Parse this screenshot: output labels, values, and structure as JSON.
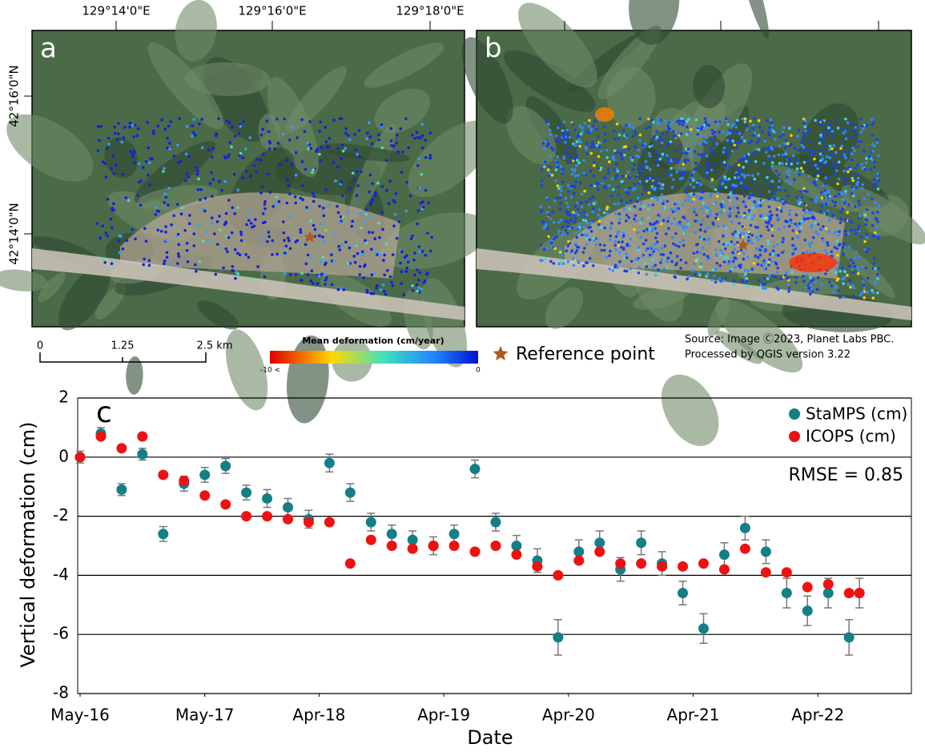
{
  "maps": {
    "panels": [
      {
        "label": "a"
      },
      {
        "label": "b"
      }
    ],
    "lon_labels": [
      "129°14'0\"E",
      "129°16'0\"E",
      "129°18'0\"E"
    ],
    "lat_labels": [
      "42°16'0\"N",
      "42°14'0\"N"
    ],
    "scale_bar": {
      "labels": [
        "0",
        "1.25",
        "2.5  km"
      ]
    },
    "colorbar": {
      "title": "Mean deformation (cm/year)",
      "min_label": "-10 <",
      "max_label": "0"
    },
    "reference": "Reference point",
    "source": [
      "Source: Image Ⓒ2023, Planet Labs PBC.",
      "Processed by QGIS version 3.22"
    ]
  },
  "chart_data": {
    "type": "scatter",
    "panel_label": "c",
    "xlabel": "Date",
    "ylabel": "Vertical deformation (cm)",
    "annotation": "RMSE = 0.85",
    "x": [
      "2016-05",
      "2016-07",
      "2016-09",
      "2016-11",
      "2017-01",
      "2017-03",
      "2017-05",
      "2017-07",
      "2017-09",
      "2017-11",
      "2018-01",
      "2018-03",
      "2018-05",
      "2018-07",
      "2018-09",
      "2018-11",
      "2019-01",
      "2019-03",
      "2019-05",
      "2019-07",
      "2019-09",
      "2019-11",
      "2020-01",
      "2020-03",
      "2020-05",
      "2020-07",
      "2020-09",
      "2020-11",
      "2021-01",
      "2021-03",
      "2021-05",
      "2021-07",
      "2021-09",
      "2021-11",
      "2022-01",
      "2022-03",
      "2022-05",
      "2022-07",
      "2022-08"
    ],
    "series": [
      {
        "name": "StaMPS (cm)",
        "color": "#137f86",
        "values": [
          0,
          0.8,
          -1.1,
          0.1,
          -2.6,
          -0.9,
          -0.6,
          -0.3,
          -1.2,
          -1.4,
          -1.7,
          -2.1,
          -0.2,
          -1.2,
          -2.2,
          -2.6,
          -2.8,
          -3.0,
          -2.6,
          -0.4,
          -2.2,
          -3.0,
          -3.5,
          -6.1,
          -3.2,
          -2.9,
          -3.8,
          -2.9,
          -3.6,
          -4.6,
          -5.8,
          -3.3,
          -2.4,
          -3.2,
          -4.6,
          -5.2,
          -4.6,
          -6.1,
          -4.6
        ],
        "errors": [
          0.2,
          0.2,
          0.2,
          0.2,
          0.25,
          0.25,
          0.25,
          0.25,
          0.25,
          0.3,
          0.3,
          0.3,
          0.3,
          0.3,
          0.3,
          0.3,
          0.3,
          0.3,
          0.3,
          0.3,
          0.3,
          0.35,
          0.4,
          0.6,
          0.4,
          0.4,
          0.4,
          0.4,
          0.4,
          0.4,
          0.5,
          0.4,
          0.4,
          0.4,
          0.5,
          0.5,
          0.5,
          0.6,
          0.5
        ]
      },
      {
        "name": "ICOPS (cm)",
        "color": "#ee1111",
        "values": [
          0,
          0.7,
          0.3,
          0.7,
          -0.6,
          -0.8,
          -1.3,
          -1.6,
          -2.0,
          -2.0,
          -2.1,
          -2.2,
          -2.2,
          -3.6,
          -2.8,
          -3.0,
          -3.1,
          -3.0,
          -3.0,
          -3.2,
          -3.0,
          -3.3,
          -3.7,
          -4.0,
          -3.5,
          -3.2,
          -3.6,
          -3.6,
          -3.7,
          -3.7,
          -3.6,
          -3.8,
          -3.1,
          -3.9,
          -3.9,
          -4.4,
          -4.3,
          -4.6,
          -4.6
        ]
      }
    ],
    "xlim": [
      "2016-05",
      "2023-01"
    ],
    "xticks": [
      {
        "value": "2016-05",
        "label": "May-16"
      },
      {
        "value": "2017-05",
        "label": "May-17"
      },
      {
        "value": "2018-04",
        "label": "Apr-18"
      },
      {
        "value": "2019-04",
        "label": "Apr-19"
      },
      {
        "value": "2020-04",
        "label": "Apr-20"
      },
      {
        "value": "2021-04",
        "label": "Apr-21"
      },
      {
        "value": "2022-04",
        "label": "Apr-22"
      }
    ],
    "ylim": [
      -8,
      2
    ],
    "yticks": [
      -8,
      -6,
      -4,
      -2,
      0,
      2
    ],
    "grid": true,
    "legend": "upper right"
  }
}
